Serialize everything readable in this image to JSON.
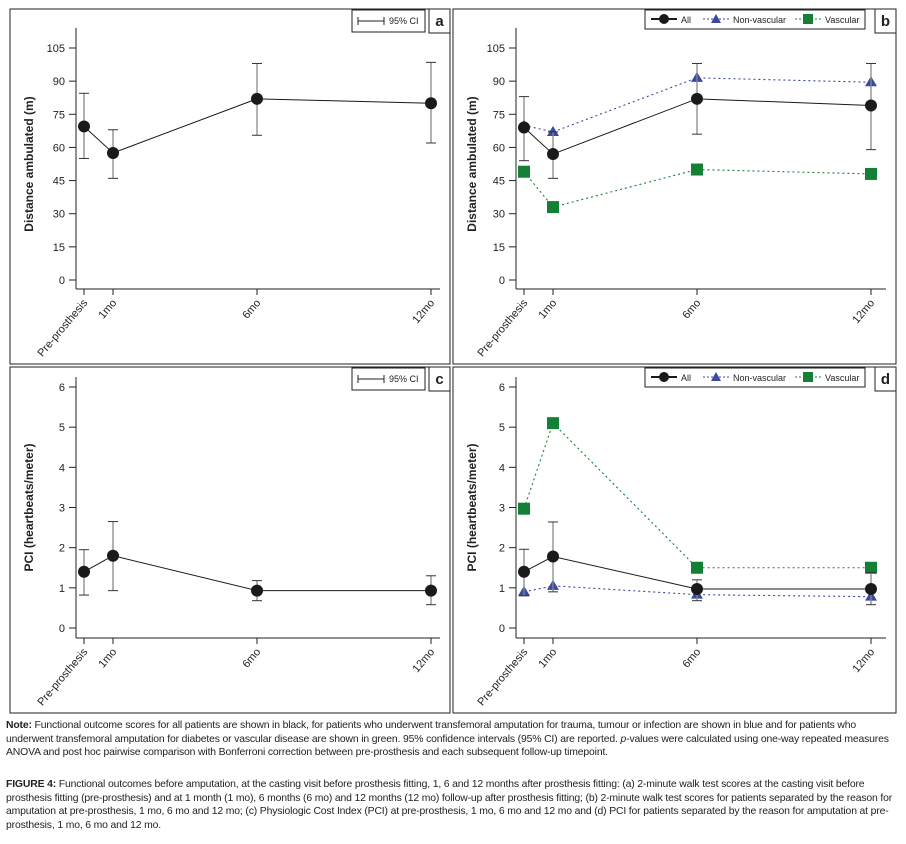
{
  "chart_data": [
    {
      "panel": "a",
      "type": "line",
      "ylabel": "Distance ambulated (m)",
      "ylim": [
        0,
        105
      ],
      "yticks": [
        0,
        15,
        30,
        45,
        60,
        75,
        90,
        105
      ],
      "categories": [
        "Pre-prosthesis",
        "1mo",
        "6mo",
        "12mo"
      ],
      "legend": [
        "95% CI"
      ],
      "legend_placement": "top-right",
      "series": [
        {
          "name": "All",
          "color": "#1a1a1a",
          "values": [
            69.5,
            57.5,
            82,
            80
          ],
          "ci_low": [
            55,
            46,
            65.5,
            62
          ],
          "ci_high": [
            84.5,
            68,
            98,
            98.5
          ]
        }
      ]
    },
    {
      "panel": "b",
      "type": "line",
      "ylabel": "Distance ambulated (m)",
      "ylim": [
        0,
        105
      ],
      "yticks": [
        0,
        15,
        30,
        45,
        60,
        75,
        90,
        105
      ],
      "categories": [
        "Pre-prosthesis",
        "1mo",
        "6mo",
        "12mo"
      ],
      "legend": [
        "All",
        "Non-vascular",
        "Vascular"
      ],
      "legend_placement": "top-right",
      "series": [
        {
          "name": "All",
          "color": "#1a1a1a",
          "values": [
            69,
            57,
            82,
            79
          ],
          "ci_low": [
            54,
            46,
            66,
            59
          ],
          "ci_high": [
            83,
            67,
            98,
            98
          ]
        },
        {
          "name": "Non-vascular",
          "color": "#3a4aa0",
          "values": [
            70,
            67,
            91.5,
            89.5
          ]
        },
        {
          "name": "Vascular",
          "color": "#148035",
          "values": [
            49,
            33,
            50,
            48
          ]
        }
      ]
    },
    {
      "panel": "c",
      "type": "line",
      "ylabel": "PCI (heartbeats/meter)",
      "ylim": [
        0,
        6
      ],
      "yticks": [
        0,
        1,
        2,
        3,
        4,
        5,
        6
      ],
      "categories": [
        "Pre-prosthesis",
        "1mo",
        "6mo",
        "12mo"
      ],
      "legend": [
        "95% CI"
      ],
      "legend_placement": "top-right",
      "series": [
        {
          "name": "All",
          "color": "#1a1a1a",
          "values": [
            1.4,
            1.8,
            0.93,
            0.93
          ],
          "ci_low": [
            0.82,
            0.93,
            0.68,
            0.58
          ],
          "ci_high": [
            1.95,
            2.65,
            1.18,
            1.3
          ]
        }
      ]
    },
    {
      "panel": "d",
      "type": "line",
      "ylabel": "PCI (heartbeats/meter)",
      "ylim": [
        0,
        6
      ],
      "yticks": [
        0,
        1,
        2,
        3,
        4,
        5,
        6
      ],
      "categories": [
        "Pre-prosthesis",
        "1mo",
        "6mo",
        "12mo"
      ],
      "legend": [
        "All",
        "Non-vascular",
        "Vascular"
      ],
      "legend_placement": "top-right",
      "series": [
        {
          "name": "All",
          "color": "#1a1a1a",
          "values": [
            1.4,
            1.78,
            0.97,
            0.97
          ],
          "ci_low": [
            0.8,
            0.9,
            0.68,
            0.58
          ],
          "ci_high": [
            1.96,
            2.64,
            1.2,
            1.38
          ]
        },
        {
          "name": "Non-vascular",
          "color": "#3a4aa0",
          "values": [
            0.9,
            1.05,
            0.83,
            0.78
          ]
        },
        {
          "name": "Vascular",
          "color": "#148035",
          "values": [
            2.97,
            5.1,
            1.5,
            1.5
          ]
        }
      ]
    }
  ],
  "note": {
    "label": "Note:",
    "text": " Functional outcome scores for all patients are shown in black, for patients who underwent transfemoral amputation for trauma, tumour or infection are shown in blue and for patients who underwent transfemoral amputation for diabetes or vascular disease are shown in green. 95% confidence intervals (95% CI) are reported. ",
    "p": "p",
    "text2": "-values were calculated using one-way repeated measures ANOVA and post hoc pairwise comparison with Bonferroni correction between pre-prosthesis and each subsequent follow-up timepoint."
  },
  "caption": {
    "label": "FIGURE 4:",
    "text": " Functional outcomes before amputation, at the casting visit before prosthesis fitting, 1, 6 and 12 months after prosthesis fitting: (a) 2-minute walk test scores at the casting visit before prosthesis fitting (pre-prosthesis) and at 1 month (1 mo), 6 months (6 mo) and 12 months (12 mo) follow-up after prosthesis fitting; (b) 2-minute walk test scores for patients separated by the reason for amputation at pre-prosthesis, 1 mo, 6 mo and 12 mo; (c) Physiologic Cost Index (PCI) at pre-prosthesis, 1 mo, 6 mo and 12 mo and (d) PCI for patients separated by the reason for amputation at pre-prosthesis, 1 mo, 6 mo and 12 mo."
  }
}
